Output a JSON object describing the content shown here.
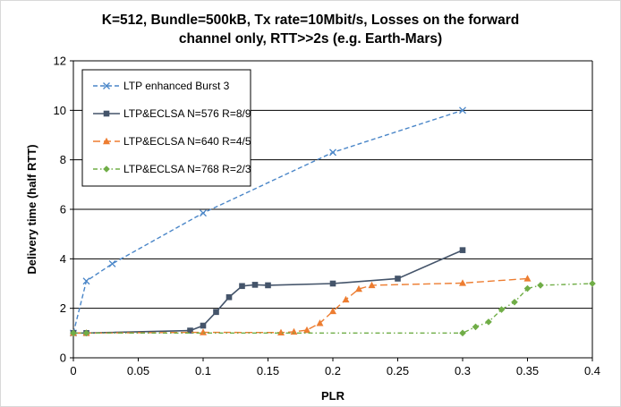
{
  "chart_data": {
    "type": "line",
    "title_lines": [
      "K=512, Bundle=500kB, Tx rate=10Mbit/s, Losses  on the forward",
      "channel only, RTT>>2s (e.g. Earth-Mars)"
    ],
    "xlabel": "PLR",
    "ylabel": "Delivery time (half RTT)",
    "xlim": [
      0,
      0.4
    ],
    "ylim": [
      0,
      12
    ],
    "x_ticks": [
      0,
      0.05,
      0.1,
      0.15,
      0.2,
      0.25,
      0.3,
      0.35,
      0.4
    ],
    "x_tick_labels": [
      "0",
      "0.05",
      "0.1",
      "0.15",
      "0.2",
      "0.25",
      "0.3",
      "0.35",
      "0.4"
    ],
    "y_ticks": [
      0,
      2,
      4,
      6,
      8,
      10,
      12
    ],
    "y_tick_labels": [
      "0",
      "2",
      "4",
      "6",
      "8",
      "10",
      "12"
    ],
    "grid": "horizontal",
    "legend_position": "top-left",
    "series": [
      {
        "name": "LTP enhanced Burst 3",
        "color": "#4a86c8",
        "dash": "dashed",
        "marker": "x",
        "x": [
          0,
          0.01,
          0.03,
          0.1,
          0.2,
          0.3
        ],
        "y": [
          1.0,
          3.1,
          3.8,
          5.85,
          8.3,
          10.0
        ]
      },
      {
        "name": "LTP&ECLSA N=576 R=8/9",
        "color": "#44546a",
        "dash": "solid",
        "marker": "square",
        "x": [
          0,
          0.01,
          0.09,
          0.1,
          0.11,
          0.12,
          0.13,
          0.14,
          0.15,
          0.2,
          0.25,
          0.3
        ],
        "y": [
          1.0,
          1.0,
          1.1,
          1.3,
          1.85,
          2.45,
          2.9,
          2.95,
          2.93,
          3.0,
          3.2,
          4.35
        ]
      },
      {
        "name": "LTP&ECLSA N=640 R=4/5",
        "color": "#ed7d31",
        "dash": "long-dash",
        "marker": "triangle",
        "x": [
          0,
          0.01,
          0.1,
          0.16,
          0.17,
          0.18,
          0.19,
          0.2,
          0.21,
          0.22,
          0.23,
          0.3,
          0.35
        ],
        "y": [
          1.0,
          1.0,
          1.03,
          1.02,
          1.05,
          1.12,
          1.4,
          1.88,
          2.35,
          2.78,
          2.93,
          3.02,
          3.2
        ]
      },
      {
        "name": "LTP&ECLSA N=768 R=2/3",
        "color": "#70ad47",
        "dash": "dash-dot",
        "marker": "diamond",
        "x": [
          0,
          0.01,
          0.3,
          0.31,
          0.32,
          0.33,
          0.34,
          0.35,
          0.36,
          0.4
        ],
        "y": [
          1.0,
          1.0,
          1.0,
          1.25,
          1.45,
          1.95,
          2.25,
          2.8,
          2.93,
          3.0
        ]
      }
    ]
  }
}
